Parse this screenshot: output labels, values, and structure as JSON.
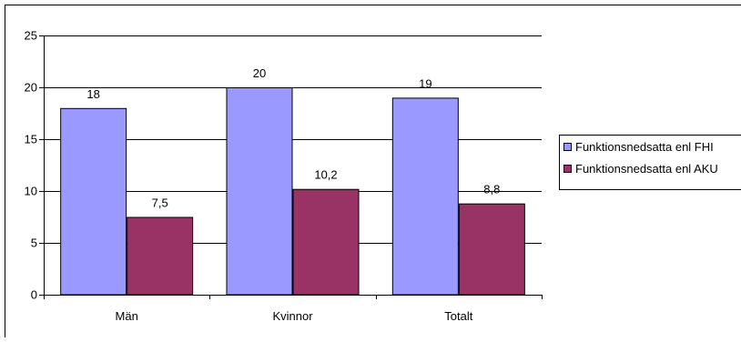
{
  "chart_data": {
    "type": "bar",
    "title": "",
    "xlabel": "",
    "ylabel": "",
    "categories": [
      "Män",
      "Kvinnor",
      "Totalt"
    ],
    "series": [
      {
        "name": "Funktionsnedsatta  enl FHI",
        "values": [
          18,
          20,
          19
        ],
        "value_labels": [
          "18",
          "20",
          "19"
        ],
        "color": "#9999ff"
      },
      {
        "name": "Funktionsnedsatta enl AKU",
        "values": [
          7.5,
          10.2,
          8.8
        ],
        "value_labels": [
          "7,5",
          "10,2",
          "8,8"
        ],
        "color": "#993366"
      }
    ],
    "ylim": [
      0,
      25
    ],
    "yticks": [
      0,
      5,
      10,
      15,
      20,
      25
    ],
    "grid": true,
    "legend_position": "right"
  }
}
